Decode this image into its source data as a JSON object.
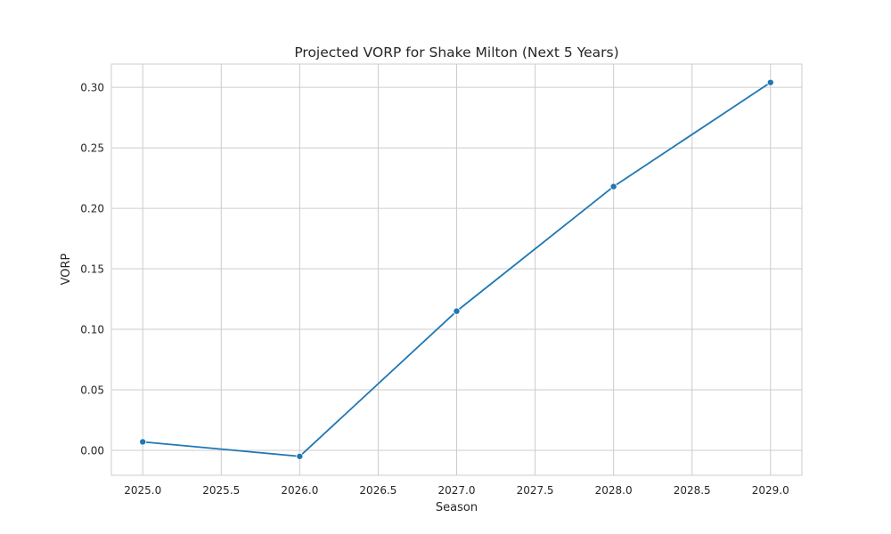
{
  "chart_data": {
    "type": "line",
    "title": "Projected VORP for Shake Milton (Next 5 Years)",
    "xlabel": "Season",
    "ylabel": "VORP",
    "x": [
      2025,
      2026,
      2027,
      2028,
      2029
    ],
    "series": [
      {
        "values": [
          0.007,
          -0.005,
          0.115,
          0.218,
          0.304
        ]
      }
    ],
    "xlim": [
      2024.8,
      2029.2
    ],
    "ylim": [
      -0.0206,
      0.3192
    ],
    "xticks": [
      2025.0,
      2025.5,
      2026.0,
      2026.5,
      2027.0,
      2027.5,
      2028.0,
      2028.5,
      2029.0
    ],
    "xtick_labels": [
      "2025.0",
      "2025.5",
      "2026.0",
      "2026.5",
      "2027.0",
      "2027.5",
      "2028.0",
      "2028.5",
      "2029.0"
    ],
    "yticks": [
      0.0,
      0.05,
      0.1,
      0.15,
      0.2,
      0.25,
      0.3
    ],
    "ytick_labels": [
      "0.00",
      "0.05",
      "0.10",
      "0.15",
      "0.20",
      "0.25",
      "0.30"
    ],
    "grid": true,
    "legend": "none",
    "line_color": "#1f77b4",
    "grid_color": "#cccccc",
    "frame_color": "#cccccc"
  }
}
